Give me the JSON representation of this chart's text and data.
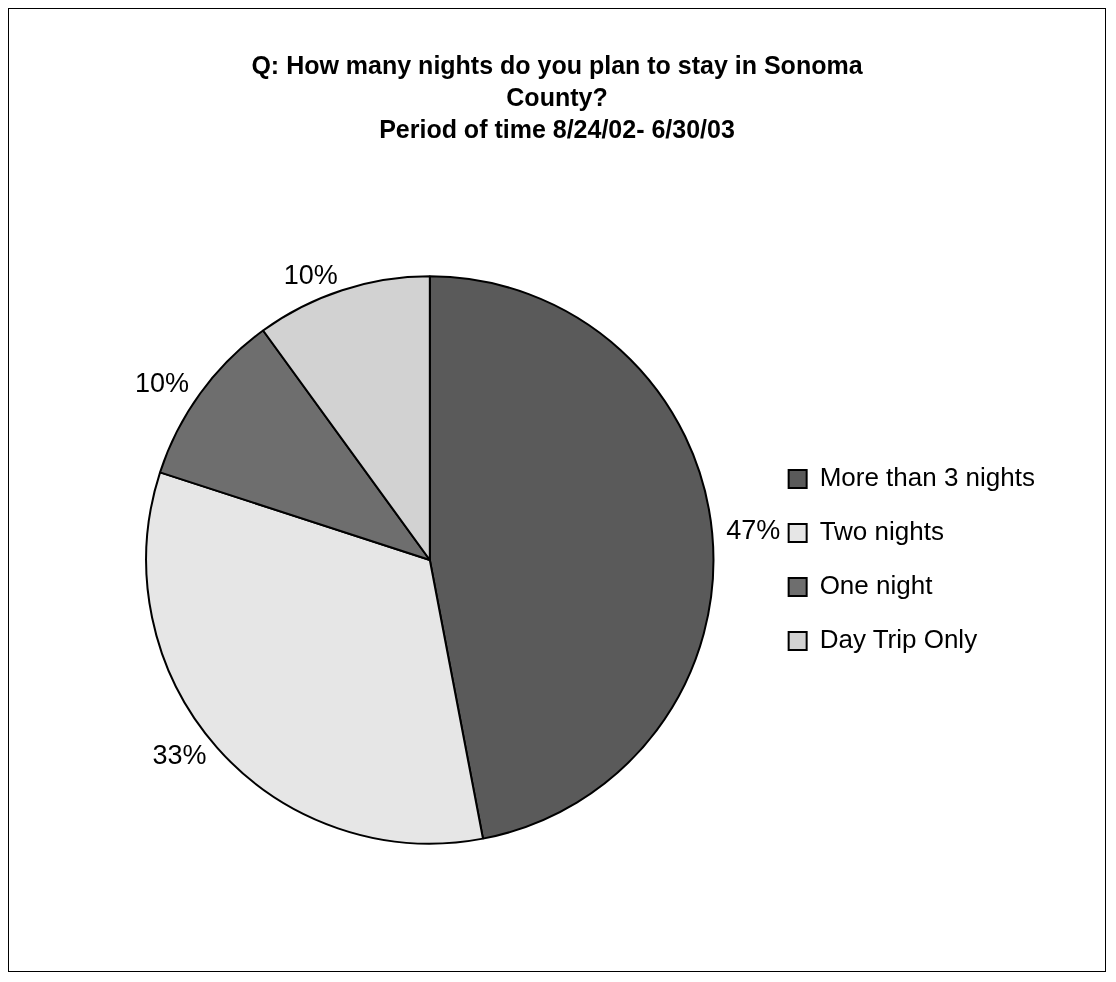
{
  "chart_data": {
    "type": "pie",
    "title": "Q: How many nights do you plan to stay in Sonoma County?",
    "subtitle": "Period of time 8/24/02- 6/30/03",
    "categories": [
      "More than 3 nights",
      "Two nights",
      "One night",
      "Day Trip Only"
    ],
    "values": [
      47,
      33,
      10,
      10
    ],
    "colors": [
      "#5a5a5a",
      "#e6e6e6",
      "#6e6e6e",
      "#d2d2d2"
    ],
    "value_labels": [
      "47%",
      "33%",
      "10%",
      "10%"
    ],
    "legend": "right"
  }
}
